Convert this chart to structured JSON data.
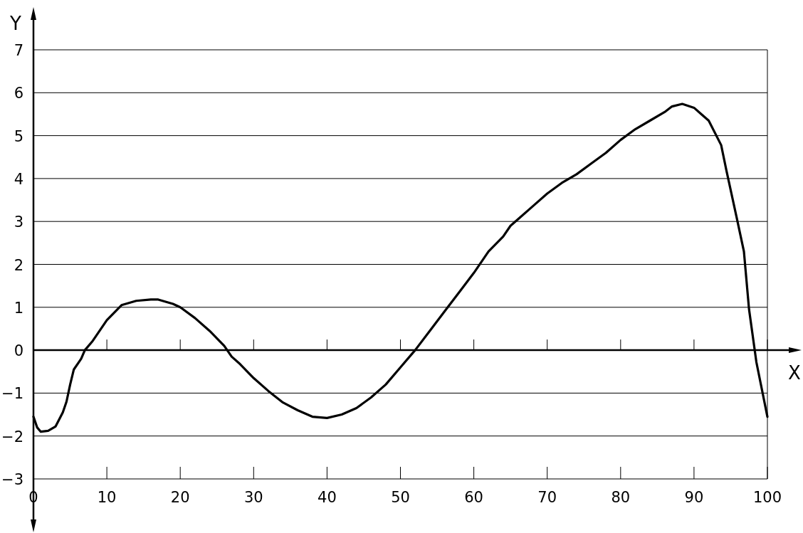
{
  "chart_data": {
    "type": "line",
    "xlabel": "X",
    "ylabel": "Y",
    "xlim": [
      0,
      100
    ],
    "ylim": [
      -3,
      7
    ],
    "xticks": [
      0,
      10,
      20,
      30,
      40,
      50,
      60,
      70,
      80,
      90,
      100
    ],
    "yticks": [
      -3,
      -2,
      -1,
      0,
      1,
      2,
      3,
      4,
      5,
      6,
      7
    ],
    "grid": "y",
    "line_style": "solid",
    "marker": "none",
    "series": [
      {
        "color": "#000000",
        "x": [
          0,
          0.5,
          1,
          2,
          3,
          4,
          4.5,
          5,
          5.5,
          6.5,
          7,
          8,
          10,
          12,
          14,
          16,
          17,
          19,
          20,
          22,
          24,
          26,
          27,
          28,
          30,
          32,
          34,
          36,
          38,
          40,
          42,
          44,
          46,
          48,
          50,
          52,
          54,
          56,
          58,
          60,
          62,
          64,
          65,
          66,
          68,
          70,
          72,
          74,
          76,
          78,
          80,
          82,
          84,
          86,
          87,
          88.4,
          90,
          91,
          92,
          93.7,
          94.4,
          95.8,
          96.8,
          97.5,
          98.5,
          100
        ],
        "values": [
          -1.55,
          -1.8,
          -1.9,
          -1.88,
          -1.78,
          -1.45,
          -1.2,
          -0.8,
          -0.45,
          -0.2,
          0,
          0.2,
          0.7,
          1.05,
          1.15,
          1.18,
          1.18,
          1.08,
          1.0,
          0.75,
          0.45,
          0.1,
          -0.15,
          -0.3,
          -0.65,
          -0.95,
          -1.22,
          -1.4,
          -1.55,
          -1.58,
          -1.5,
          -1.35,
          -1.1,
          -0.8,
          -0.4,
          0,
          0.45,
          0.9,
          1.35,
          1.8,
          2.3,
          2.65,
          2.9,
          3.05,
          3.35,
          3.65,
          3.9,
          4.1,
          4.35,
          4.6,
          4.9,
          5.15,
          5.35,
          5.55,
          5.68,
          5.74,
          5.65,
          5.5,
          5.35,
          4.78,
          4.2,
          3.1,
          2.3,
          0.95,
          -0.28,
          -1.55
        ]
      }
    ]
  }
}
